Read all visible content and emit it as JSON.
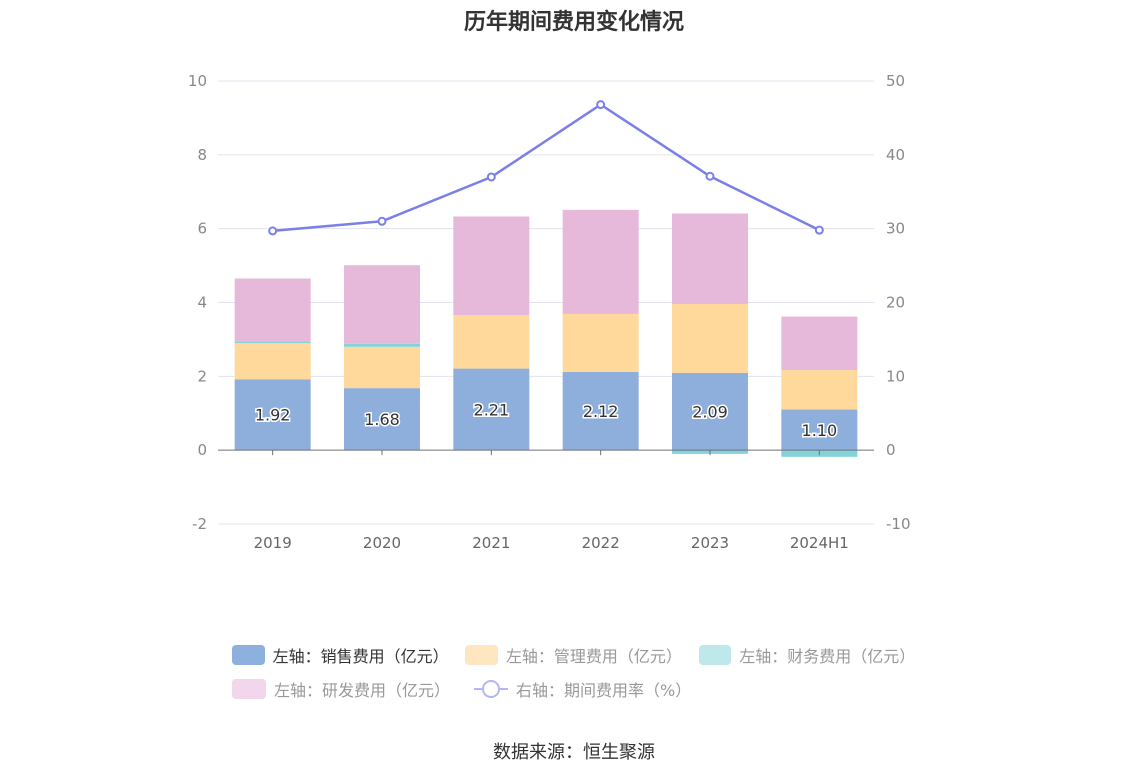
{
  "title": "历年期间费用变化情况",
  "source": "数据来源：恒生聚源",
  "legend": [
    {
      "label": "左轴：销售费用（亿元）",
      "color": "#8eb0dd",
      "active": true
    },
    {
      "label": "左轴：管理费用（亿元）",
      "color": "#fde6c0",
      "active": false
    },
    {
      "label": "左轴：财务费用（亿元）",
      "color": "#bfe8ea",
      "active": false
    },
    {
      "label": "左轴：研发费用（亿元）",
      "color": "#f2d6ec",
      "active": false
    },
    {
      "label": "右轴：期间费用率（%）",
      "color": "#b3b6f5",
      "active": false
    }
  ],
  "chart_data": {
    "type": "bar",
    "categories": [
      "2019",
      "2020",
      "2021",
      "2022",
      "2023",
      "2024H1"
    ],
    "series": [
      {
        "name": "左轴：销售费用（亿元）",
        "axis": "left",
        "color": "#8eaedb",
        "stack": "total",
        "values": [
          1.92,
          1.68,
          2.21,
          2.12,
          2.09,
          1.1
        ],
        "labels": [
          "1.92",
          "1.68",
          "2.21",
          "2.12",
          "2.09",
          "1.10"
        ]
      },
      {
        "name": "左轴：管理费用（亿元）",
        "axis": "left",
        "color": "#fed99b",
        "stack": "total",
        "values": [
          0.98,
          1.12,
          1.45,
          1.57,
          1.87,
          1.07
        ]
      },
      {
        "name": "左轴：财务费用（亿元）",
        "axis": "left",
        "color": "#83d3d8",
        "stack": "total",
        "values": [
          0.03,
          0.08,
          0.0,
          0.0,
          -0.1,
          -0.18
        ]
      },
      {
        "name": "左轴：研发费用（亿元）",
        "axis": "left",
        "color": "#e6b9da",
        "stack": "total",
        "values": [
          1.72,
          2.13,
          2.67,
          2.82,
          2.45,
          1.45
        ]
      },
      {
        "name": "右轴：期间费用率（%）",
        "axis": "right",
        "type": "line",
        "color": "#7b7fe8",
        "values": [
          29.7,
          31.0,
          37.0,
          46.8,
          37.1,
          29.8
        ]
      }
    ],
    "left_axis": {
      "ylim": [
        -2,
        10
      ],
      "ticks": [
        -2,
        0,
        2,
        4,
        6,
        8,
        10
      ]
    },
    "right_axis": {
      "ylim": [
        -10,
        50
      ],
      "ticks": [
        -10,
        0,
        10,
        20,
        30,
        40,
        50
      ]
    },
    "grid": true,
    "legend_position": "bottom"
  }
}
